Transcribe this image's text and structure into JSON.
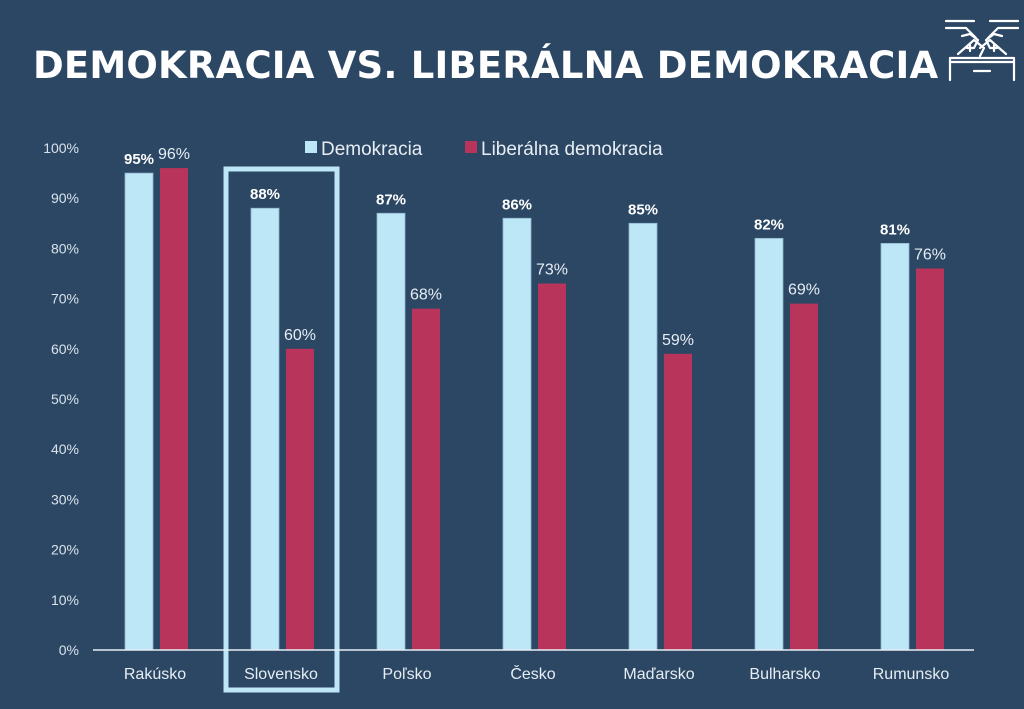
{
  "header": {
    "title": "DEMOKRACIA VS. LIBERÁLNA DEMOKRACIA",
    "logo_icon": "ballot-box-icon"
  },
  "colors": {
    "background": "#2c4764",
    "demokracia": "#bde6f7",
    "liberalna": "#b8345a",
    "highlight": "#bde6f7",
    "text": "#ffffff"
  },
  "chart_data": {
    "type": "bar",
    "title": "DEMOKRACIA VS. LIBERÁLNA DEMOKRACIA",
    "xlabel": "",
    "ylabel": "",
    "ylim": [
      0,
      100
    ],
    "yticks": [
      "0%",
      "10%",
      "20%",
      "30%",
      "40%",
      "50%",
      "60%",
      "70%",
      "80%",
      "90%",
      "100%"
    ],
    "grid": false,
    "legend_position": "top-center",
    "categories": [
      "Rakúsko",
      "Slovensko",
      "Poľsko",
      "Česko",
      "Maďarsko",
      "Bulharsko",
      "Rumunsko"
    ],
    "highlighted_category": "Slovensko",
    "series": [
      {
        "name": "Demokracia",
        "values": [
          95,
          88,
          87,
          86,
          85,
          82,
          81
        ],
        "labels": [
          "95%",
          "88%",
          "87%",
          "86%",
          "85%",
          "82%",
          "81%"
        ]
      },
      {
        "name": "Liberálna demokracia",
        "values": [
          96,
          60,
          68,
          73,
          59,
          69,
          76
        ],
        "labels": [
          "96%",
          "60%",
          "68%",
          "73%",
          "59%",
          "69%",
          "76%"
        ]
      }
    ]
  }
}
